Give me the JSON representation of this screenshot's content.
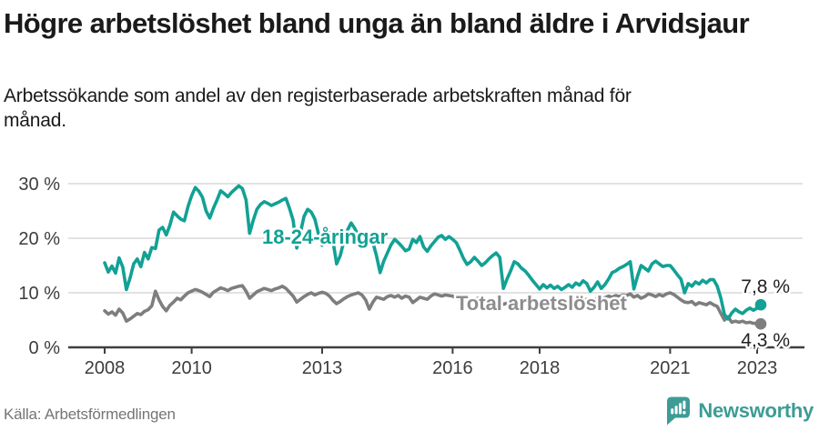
{
  "header": {
    "title": "Högre arbetslöshet bland unga än bland äldre i Arvidsjaur",
    "subtitle": "Arbetssökande som andel av den registerbaserade arbetskraften månad för månad."
  },
  "chart_data": {
    "type": "line",
    "unit": "%",
    "frequency": "monthly",
    "x_start": "2008-01",
    "x_end": "2023-02",
    "ylim": [
      0,
      30
    ],
    "grid": true,
    "legend": "inline-labels",
    "yticks": [
      {
        "value": 0,
        "label": "0 %"
      },
      {
        "value": 10,
        "label": "10 %"
      },
      {
        "value": 20,
        "label": "20 %"
      },
      {
        "value": 30,
        "label": "30 %"
      }
    ],
    "xticks": [
      {
        "year": 2008,
        "label": "2008"
      },
      {
        "year": 2010,
        "label": "2010"
      },
      {
        "year": 2013,
        "label": "2013"
      },
      {
        "year": 2016,
        "label": "2016"
      },
      {
        "year": 2018,
        "label": "2018"
      },
      {
        "year": 2021,
        "label": "2021"
      },
      {
        "year": 2023,
        "label": "2023"
      }
    ],
    "series": [
      {
        "name": "18-24-åringar",
        "color": "#12a195",
        "label_color": "#12a195",
        "end_value": 7.8,
        "end_label": "7,8 %",
        "values": [
          15.5,
          13.8,
          14.9,
          13.6,
          16.4,
          14.7,
          10.6,
          12.7,
          15.3,
          16.2,
          14.8,
          17.4,
          16.2,
          18.3,
          18.1,
          21.5,
          22.0,
          20.6,
          22.4,
          24.8,
          24.1,
          23.5,
          23.2,
          25.8,
          27.8,
          29.3,
          28.6,
          27.5,
          25.0,
          23.7,
          25.5,
          27.0,
          28.7,
          28.2,
          27.6,
          28.4,
          29.0,
          29.6,
          29.1,
          27.0,
          20.9,
          23.3,
          25.3,
          26.2,
          26.7,
          26.4,
          26.0,
          26.3,
          26.6,
          27.0,
          27.3,
          25.5,
          23.3,
          18.2,
          21.0,
          24.0,
          25.3,
          24.8,
          23.5,
          20.8,
          18.7,
          20.2,
          21.0,
          19.5,
          15.3,
          16.8,
          19.5,
          21.5,
          22.8,
          21.8,
          20.5,
          18.2,
          18.3,
          20.0,
          19.2,
          16.8,
          13.7,
          15.8,
          17.3,
          18.8,
          19.8,
          19.2,
          18.5,
          17.7,
          18.0,
          19.8,
          19.2,
          20.3,
          18.4,
          17.6,
          18.6,
          19.4,
          20.2,
          20.5,
          19.8,
          20.3,
          19.8,
          19.2,
          17.8,
          16.3,
          15.2,
          15.7,
          16.5,
          15.8,
          15.0,
          15.5,
          16.2,
          16.8,
          17.3,
          16.5,
          10.8,
          12.5,
          14.0,
          15.7,
          15.3,
          14.5,
          14.0,
          13.2,
          12.3,
          11.5,
          10.7,
          11.5,
          10.9,
          11.4,
          10.8,
          11.2,
          10.6,
          11.0,
          11.5,
          11.0,
          11.8,
          11.4,
          12.2,
          11.7,
          10.3,
          11.0,
          12.0,
          10.8,
          11.5,
          12.5,
          13.7,
          14.0,
          14.5,
          14.8,
          15.2,
          15.7,
          10.7,
          13.0,
          15.0,
          14.5,
          14.0,
          15.3,
          15.8,
          15.3,
          14.8,
          15.0,
          15.0,
          14.2,
          13.3,
          12.5,
          10.0,
          11.7,
          11.2,
          12.0,
          11.6,
          12.3,
          11.8,
          12.4,
          12.4,
          11.2,
          9.0,
          6.0,
          5.2,
          6.3,
          7.0,
          6.5,
          6.2,
          6.8,
          7.2,
          6.8,
          7.2,
          7.8
        ]
      },
      {
        "name": "Total arbetslöshet",
        "color": "#7e7e7e",
        "label_color": "#8d8d8d",
        "end_value": 4.3,
        "end_label": "4,3 %",
        "values": [
          6.7,
          6.1,
          6.5,
          5.9,
          7.0,
          6.3,
          4.8,
          5.2,
          5.7,
          6.2,
          6.0,
          6.6,
          6.9,
          7.6,
          10.3,
          8.7,
          7.5,
          6.7,
          7.7,
          8.3,
          9.0,
          8.7,
          9.4,
          10.0,
          10.3,
          10.6,
          10.4,
          10.1,
          9.7,
          9.3,
          10.1,
          10.5,
          10.9,
          10.7,
          10.4,
          10.8,
          11.0,
          11.2,
          11.3,
          10.3,
          9.0,
          9.6,
          10.2,
          10.5,
          10.8,
          10.6,
          10.4,
          10.7,
          10.9,
          11.2,
          10.8,
          10.1,
          9.4,
          8.3,
          8.8,
          9.3,
          9.7,
          10.0,
          9.6,
          9.9,
          10.1,
          9.9,
          9.4,
          8.6,
          8.0,
          8.4,
          8.9,
          9.3,
          9.6,
          9.8,
          10.0,
          9.6,
          8.7,
          7.0,
          8.3,
          9.2,
          9.0,
          8.8,
          9.3,
          9.5,
          9.2,
          9.5,
          9.0,
          9.4,
          9.2,
          8.2,
          8.7,
          9.2,
          9.0,
          8.8,
          9.4,
          9.8,
          9.6,
          9.4,
          9.6,
          9.5,
          9.4,
          9.0,
          8.7,
          8.4,
          8.0,
          8.3,
          8.7,
          9.0,
          8.8,
          8.6,
          8.4,
          8.7,
          8.5,
          8.2,
          7.9,
          8.1,
          7.7,
          7.9,
          8.3,
          8.6,
          8.4,
          8.2,
          8.5,
          8.3,
          8.2,
          7.9,
          8.1,
          7.8,
          7.6,
          7.9,
          8.2,
          8.5,
          8.3,
          8.6,
          8.4,
          8.7,
          8.6,
          8.8,
          8.5,
          8.7,
          9.0,
          8.8,
          9.1,
          9.4,
          9.2,
          9.5,
          9.3,
          9.6,
          9.5,
          9.8,
          9.2,
          9.5,
          9.0,
          9.3,
          9.8,
          9.6,
          9.3,
          9.7,
          9.4,
          9.8,
          10.0,
          9.7,
          9.2,
          8.7,
          8.3,
          8.2,
          8.4,
          7.8,
          8.2,
          8.0,
          7.8,
          8.2,
          7.8,
          7.5,
          6.2,
          5.0,
          5.6,
          4.6,
          4.8,
          4.6,
          4.8,
          4.5,
          4.6,
          4.4,
          4.4,
          4.3
        ]
      }
    ],
    "colors": {
      "grid": "#d9d9d9",
      "axis": "#3f3f3f",
      "tick_text": "#3d3d3d"
    }
  },
  "footer": {
    "source": "Källa: Arbetsförmedlingen",
    "brand": "Newsworthy",
    "brand_color": "#3d9c95"
  }
}
